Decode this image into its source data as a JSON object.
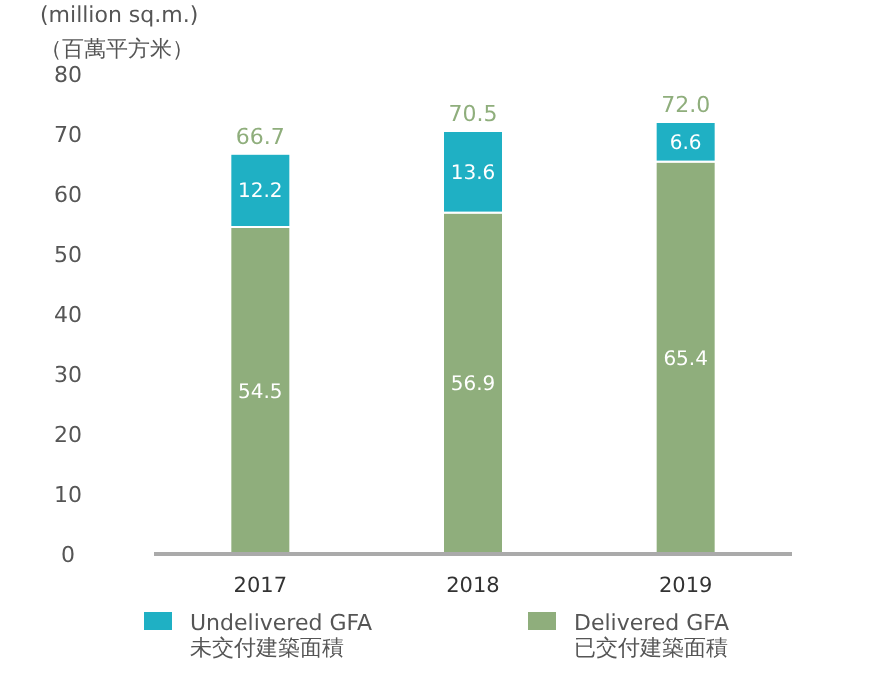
{
  "chart_data": {
    "type": "bar",
    "stacked": true,
    "ylabel": "(million sq.m.)\n（百萬平方米）",
    "categories": [
      "2017",
      "2018",
      "2019"
    ],
    "series": [
      {
        "name": "Delivered GFA\n已交付建築面積",
        "color": "#8fae7c",
        "values": [
          54.5,
          56.9,
          65.4
        ]
      },
      {
        "name": "Undelivered GFA\n未交付建築面積",
        "color": "#1fb0c4",
        "values": [
          12.2,
          13.6,
          6.6
        ]
      }
    ],
    "ylim": [
      0,
      80
    ],
    "yticks": [
      0,
      10,
      20,
      30,
      40,
      50,
      60,
      70,
      80
    ],
    "data_labels": true,
    "totals": [
      "66.7",
      "70.5",
      "72.0"
    ],
    "legend": "bottom"
  }
}
